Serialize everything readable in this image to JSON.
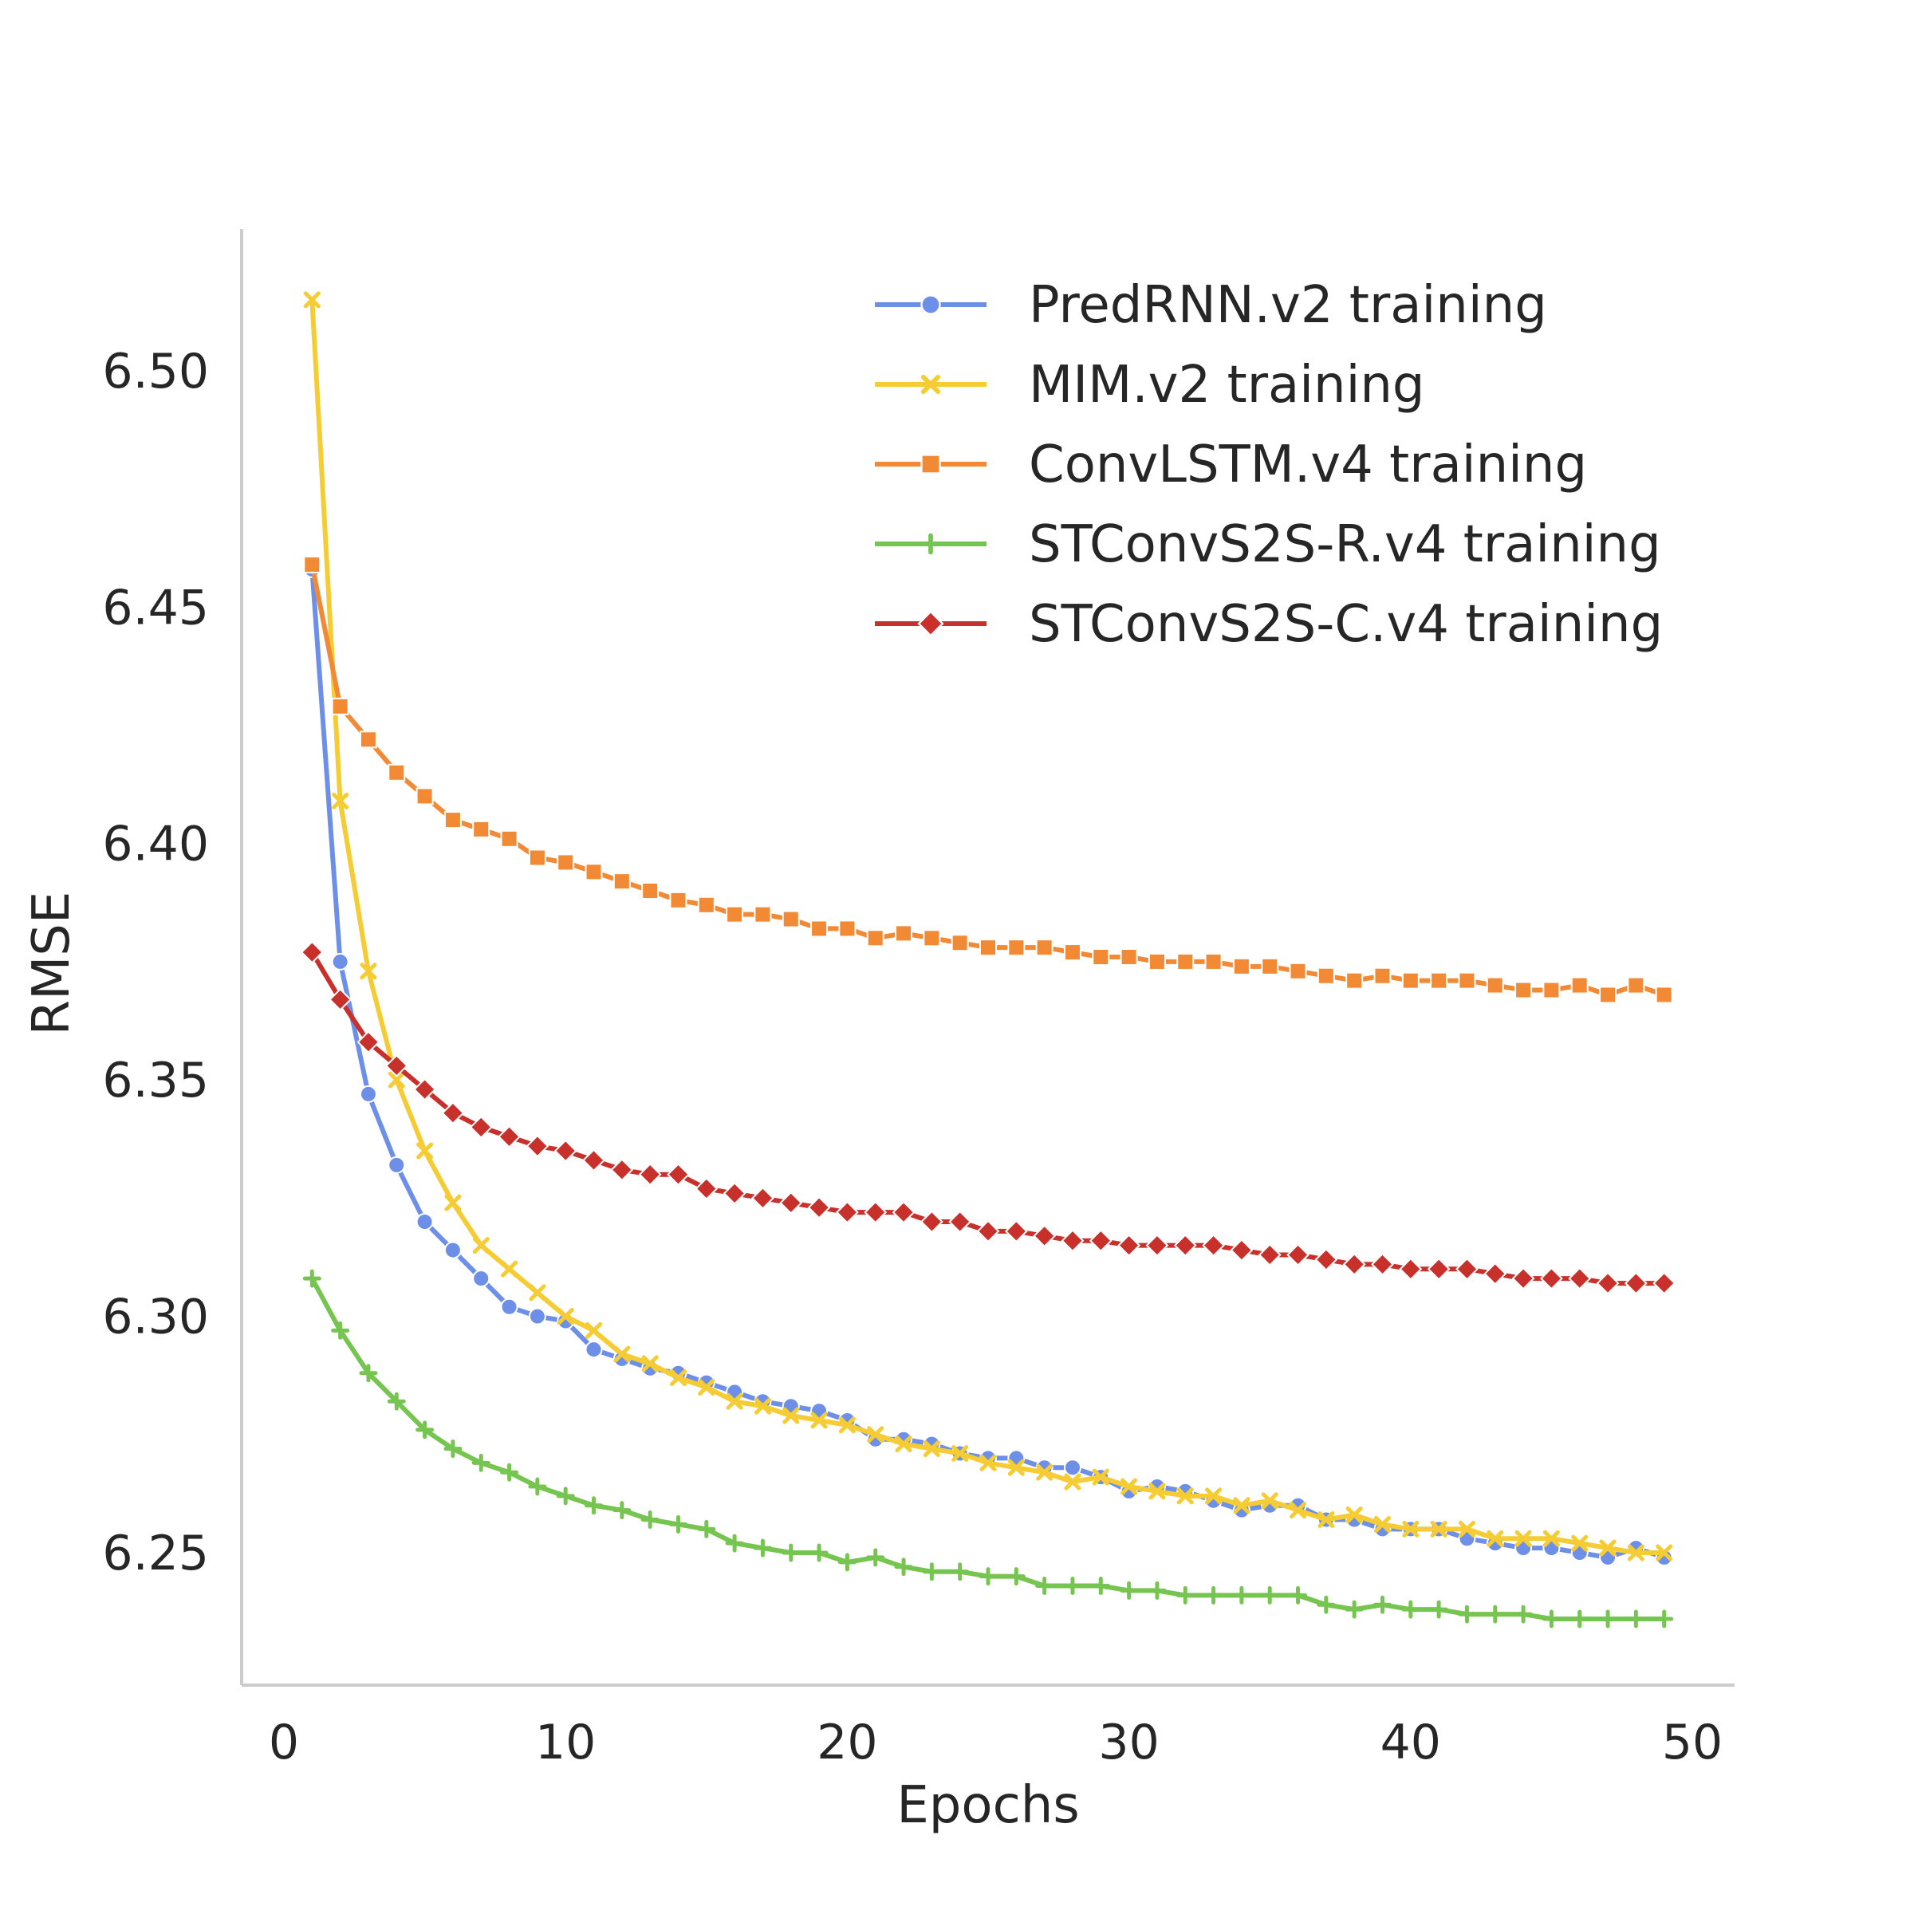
{
  "chart_data": {
    "type": "line",
    "title": "",
    "xlabel": "Epochs",
    "ylabel": "RMSE",
    "xlim": [
      -1.5,
      51.5
    ],
    "ylim": [
      6.222,
      6.53
    ],
    "xticks": [
      0,
      10,
      20,
      30,
      40,
      50
    ],
    "yticks": [
      6.25,
      6.3,
      6.35,
      6.4,
      6.45,
      6.5
    ],
    "xtick_labels": [
      "0",
      "10",
      "20",
      "30",
      "40",
      "50"
    ],
    "ytick_labels": [
      "6.25",
      "6.30",
      "6.35",
      "6.40",
      "6.45",
      "6.50"
    ],
    "grid": false,
    "legend_position": "top-right",
    "x": [
      1,
      2,
      3,
      4,
      5,
      6,
      7,
      8,
      9,
      10,
      11,
      12,
      13,
      14,
      15,
      16,
      17,
      18,
      19,
      20,
      21,
      22,
      23,
      24,
      25,
      26,
      27,
      28,
      29,
      30,
      31,
      32,
      33,
      34,
      35,
      36,
      37,
      38,
      39,
      40,
      41,
      42,
      43,
      44,
      45,
      46,
      47,
      48,
      49
    ],
    "series": [
      {
        "name": "PredRNN.v2 training",
        "color": "#6d8fe8",
        "marker": "circle",
        "values": [
          6.458,
          6.375,
          6.347,
          6.332,
          6.32,
          6.314,
          6.308,
          6.302,
          6.3,
          6.299,
          6.293,
          6.291,
          6.289,
          6.288,
          6.286,
          6.284,
          6.282,
          6.281,
          6.28,
          6.278,
          6.274,
          6.274,
          6.273,
          6.271,
          6.27,
          6.27,
          6.268,
          6.268,
          6.266,
          6.263,
          6.264,
          6.263,
          6.261,
          6.259,
          6.26,
          6.26,
          6.257,
          6.257,
          6.255,
          6.255,
          6.255,
          6.253,
          6.252,
          6.251,
          6.251,
          6.25,
          6.249,
          6.251,
          6.249
        ]
      },
      {
        "name": "MIM.v2 training",
        "color": "#f5cc33",
        "marker": "x",
        "values": [
          6.515,
          6.409,
          6.373,
          6.35,
          6.335,
          6.324,
          6.315,
          6.31,
          6.305,
          6.3,
          6.297,
          6.292,
          6.29,
          6.287,
          6.285,
          6.282,
          6.281,
          6.279,
          6.278,
          6.277,
          6.275,
          6.273,
          6.272,
          6.271,
          6.269,
          6.268,
          6.267,
          6.265,
          6.266,
          6.264,
          6.263,
          6.262,
          6.262,
          6.26,
          6.261,
          6.259,
          6.257,
          6.258,
          6.256,
          6.255,
          6.255,
          6.255,
          6.253,
          6.253,
          6.253,
          6.252,
          6.251,
          6.25,
          6.25
        ]
      },
      {
        "name": "ConvLSTM.v4 training",
        "color": "#f28a35",
        "marker": "square",
        "values": [
          6.459,
          6.429,
          6.422,
          6.415,
          6.41,
          6.405,
          6.403,
          6.401,
          6.397,
          6.396,
          6.394,
          6.392,
          6.39,
          6.388,
          6.387,
          6.385,
          6.385,
          6.384,
          6.382,
          6.382,
          6.38,
          6.381,
          6.38,
          6.379,
          6.378,
          6.378,
          6.378,
          6.377,
          6.376,
          6.376,
          6.375,
          6.375,
          6.375,
          6.374,
          6.374,
          6.373,
          6.372,
          6.371,
          6.372,
          6.371,
          6.371,
          6.371,
          6.37,
          6.369,
          6.369,
          6.37,
          6.368,
          6.37,
          6.368
        ]
      },
      {
        "name": "STConvS2S-R.v4 training",
        "color": "#77c551",
        "marker": "plus",
        "values": [
          6.308,
          6.297,
          6.288,
          6.282,
          6.276,
          6.272,
          6.269,
          6.267,
          6.264,
          6.262,
          6.26,
          6.259,
          6.257,
          6.256,
          6.255,
          6.252,
          6.251,
          6.25,
          6.25,
          6.248,
          6.249,
          6.247,
          6.246,
          6.246,
          6.245,
          6.245,
          6.243,
          6.243,
          6.243,
          6.242,
          6.242,
          6.241,
          6.241,
          6.241,
          6.241,
          6.241,
          6.239,
          6.238,
          6.239,
          6.238,
          6.238,
          6.237,
          6.237,
          6.237,
          6.236,
          6.236,
          6.236,
          6.236,
          6.236
        ]
      },
      {
        "name": "STConvS2S-C.v4 training",
        "color": "#c8302b",
        "marker": "diamond",
        "values": [
          6.377,
          6.367,
          6.358,
          6.353,
          6.348,
          6.343,
          6.34,
          6.338,
          6.336,
          6.335,
          6.333,
          6.331,
          6.33,
          6.33,
          6.327,
          6.326,
          6.325,
          6.324,
          6.323,
          6.322,
          6.322,
          6.322,
          6.32,
          6.32,
          6.318,
          6.318,
          6.317,
          6.316,
          6.316,
          6.315,
          6.315,
          6.315,
          6.315,
          6.314,
          6.313,
          6.313,
          6.312,
          6.311,
          6.311,
          6.31,
          6.31,
          6.31,
          6.309,
          6.308,
          6.308,
          6.308,
          6.307,
          6.307,
          6.307
        ]
      }
    ]
  }
}
